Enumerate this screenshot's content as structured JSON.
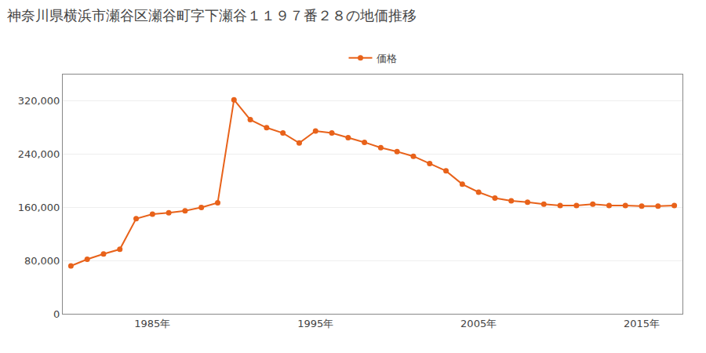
{
  "chart_data": {
    "type": "line",
    "title": "神奈川県横浜市瀬谷区瀬谷町字下瀬谷１１９７番２８の地価推移",
    "x": [
      1980,
      1981,
      1982,
      1983,
      1984,
      1985,
      1986,
      1987,
      1988,
      1989,
      1990,
      1991,
      1992,
      1993,
      1994,
      1995,
      1996,
      1997,
      1998,
      1999,
      2000,
      2001,
      2002,
      2003,
      2004,
      2005,
      2006,
      2007,
      2008,
      2009,
      2010,
      2011,
      2012,
      2013,
      2014,
      2015,
      2016,
      2017
    ],
    "series": [
      {
        "name": "価格",
        "color": "#E8621A",
        "marker": "circle",
        "line_style": "solid",
        "values": [
          72000,
          82000,
          90000,
          97000,
          143000,
          150000,
          152000,
          155000,
          160000,
          167000,
          322000,
          292000,
          280000,
          272000,
          257000,
          275000,
          272000,
          265000,
          258000,
          250000,
          244000,
          237000,
          226000,
          215000,
          195000,
          183000,
          174000,
          170000,
          168000,
          165000,
          163000,
          163000,
          165000,
          163000,
          163000,
          162000,
          162000,
          163000
        ]
      }
    ],
    "xlim": [
      1979.5,
      2017.5
    ],
    "xticks": [
      {
        "value": 1985,
        "label": "1985年"
      },
      {
        "value": 1995,
        "label": "1995年"
      },
      {
        "value": 2005,
        "label": "2005年"
      },
      {
        "value": 2015,
        "label": "2015年"
      }
    ],
    "ylim": [
      0,
      360000
    ],
    "yticks": [
      0,
      {
        "value": 80000,
        "label": "80,000"
      },
      {
        "value": 160000,
        "label": "160,000"
      },
      {
        "value": 240000,
        "label": "240,000"
      },
      {
        "value": 320000,
        "label": "320,000"
      }
    ],
    "grid": "y",
    "legend": "top"
  }
}
